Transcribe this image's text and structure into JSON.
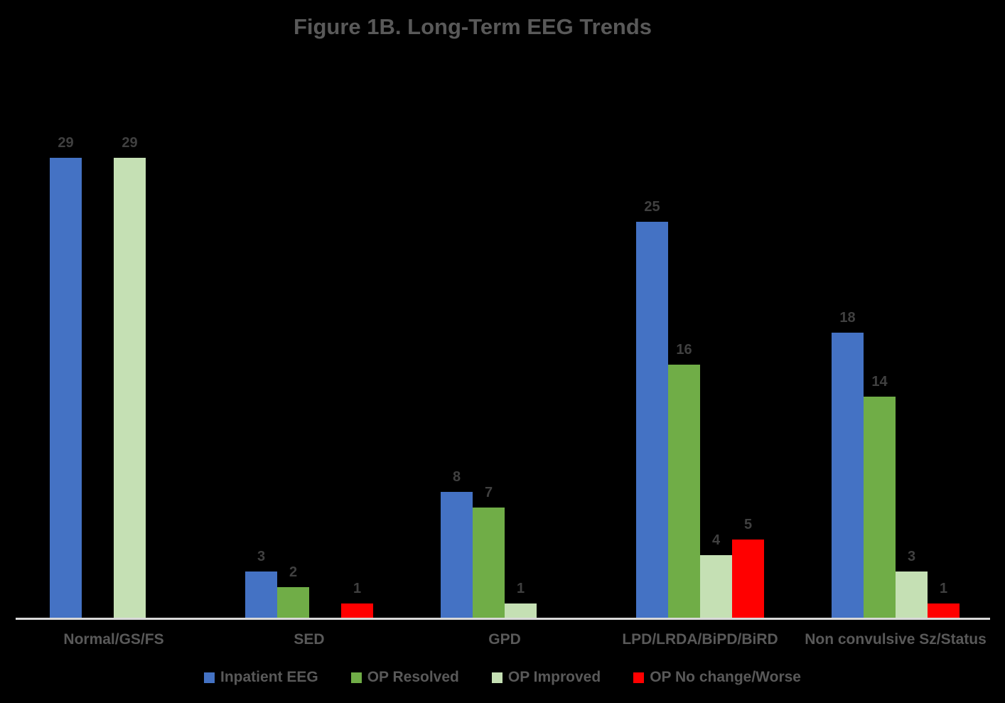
{
  "title": "Figure 1B. Long-Term EEG Trends",
  "colors": {
    "background": "#000000",
    "title_text": "#595959",
    "category_text": "#595959",
    "legend_text": "#595959",
    "data_label_text": "#404040",
    "axis_line": "#D9D9D9"
  },
  "chart_data": {
    "type": "bar",
    "title": "Figure 1B. Long-Term EEG Trends",
    "categories": [
      "Normal/GS/FS",
      "SED",
      "GPD",
      "LPD/LRDA/BiPD/BiRD",
      "Non convulsive Sz/Status"
    ],
    "series": [
      {
        "name": "Inpatient EEG",
        "color": "#4472C4",
        "values": [
          29,
          3,
          8,
          25,
          18
        ]
      },
      {
        "name": "OP Resolved",
        "color": "#70AD47",
        "values": [
          0,
          2,
          7,
          16,
          14
        ]
      },
      {
        "name": "OP Improved",
        "color": "#C5E0B4",
        "values": [
          29,
          0,
          1,
          4,
          3
        ]
      },
      {
        "name": "OP No change/Worse",
        "color": "#FF0000",
        "values": [
          0,
          1,
          0,
          5,
          1
        ]
      }
    ],
    "xlabel": "",
    "ylabel": "",
    "ylim": [
      0,
      29
    ],
    "grid": false,
    "y_axis_visible": false,
    "data_labels": true,
    "zero_bars_hidden": true,
    "legend_position": "bottom"
  }
}
